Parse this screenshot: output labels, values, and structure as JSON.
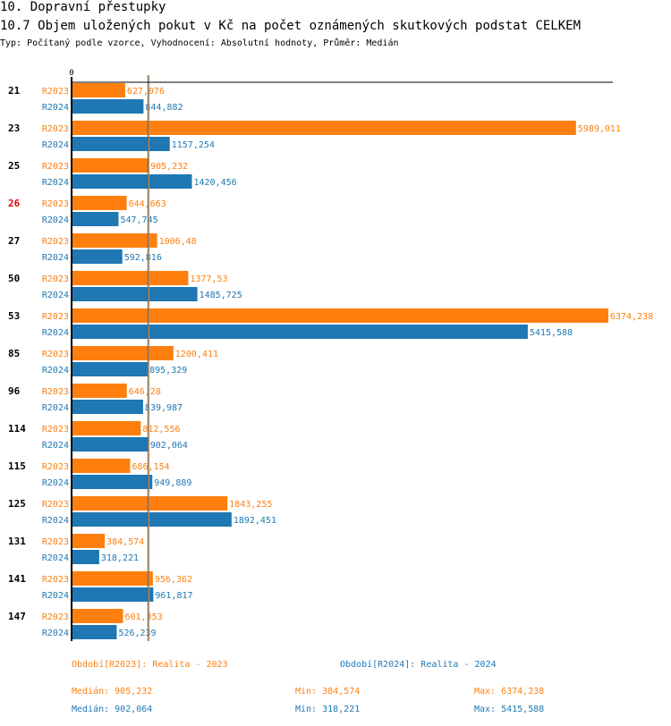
{
  "header": {
    "section": "10. Dopravní přestupky",
    "title": "10.7 Objem uložených pokut v Kč na počet oznámených skutkových podstat CELKEM",
    "subtitle": "Typ: Počítaný podle vzorce, Vyhodnocení: Absolutní hodnoty, Průměr: Medián"
  },
  "colors": {
    "R2023": "#ff7f0e",
    "R2024": "#1f77b4",
    "highlight": "#e00000",
    "axis": "#000000"
  },
  "chart_data": {
    "type": "bar",
    "orientation": "horizontal",
    "title": "10.7 Objem uložených pokut v Kč na počet oznámených skutkových podstat CELKEM",
    "xlabel": "",
    "ylabel": "",
    "xlim": [
      0,
      6374.238
    ],
    "axis_tick_labels": [
      "0"
    ],
    "grid": false,
    "categories": [
      "21",
      "23",
      "25",
      "26",
      "27",
      "50",
      "53",
      "85",
      "96",
      "114",
      "115",
      "125",
      "131",
      "141",
      "147"
    ],
    "highlighted_categories": [
      "26"
    ],
    "series": [
      {
        "name": "R2023",
        "color": "#ff7f0e",
        "values": [
          627.076,
          5989.011,
          905.232,
          644.663,
          1006.48,
          1377.53,
          6374.238,
          1200.411,
          646.28,
          812.556,
          686.154,
          1843.255,
          384.574,
          956.362,
          601.353
        ],
        "labels": [
          "627,076",
          "5989,011",
          "905,232",
          "644,663",
          "1006,48",
          "1377,53",
          "6374,238",
          "1200,411",
          "646,28",
          "812,556",
          "686,154",
          "1843,255",
          "384,574",
          "956,362",
          "601,353"
        ]
      },
      {
        "name": "R2024",
        "color": "#1f77b4",
        "values": [
          844.882,
          1157.254,
          1420.456,
          547.745,
          592.816,
          1485.725,
          5415.588,
          895.329,
          839.987,
          902.064,
          949.889,
          1892.451,
          318.221,
          961.817,
          526.239
        ],
        "labels": [
          "844,882",
          "1157,254",
          "1420,456",
          "547,745",
          "592,816",
          "1485,725",
          "5415,588",
          "895,329",
          "839,987",
          "902,064",
          "949,889",
          "1892,451",
          "318,221",
          "961,817",
          "526,239"
        ]
      }
    ],
    "reference_lines": [
      {
        "name": "Medián R2023",
        "value": 905.232,
        "color": "#ff7f0e"
      },
      {
        "name": "Medián R2024",
        "value": 902.064,
        "color": "#1f77b4"
      }
    ]
  },
  "legend": {
    "r2023": "Období[R2023]: Realita - 2023",
    "r2024": "Období[R2024]: Realita - 2024"
  },
  "stats": {
    "r2023": {
      "median": "Medián: 905,232",
      "min": "Min: 384,574",
      "max": "Max: 6374,238"
    },
    "r2024": {
      "median": "Medián: 902,064",
      "min": "Min: 318,221",
      "max": "Max: 5415,588"
    }
  }
}
